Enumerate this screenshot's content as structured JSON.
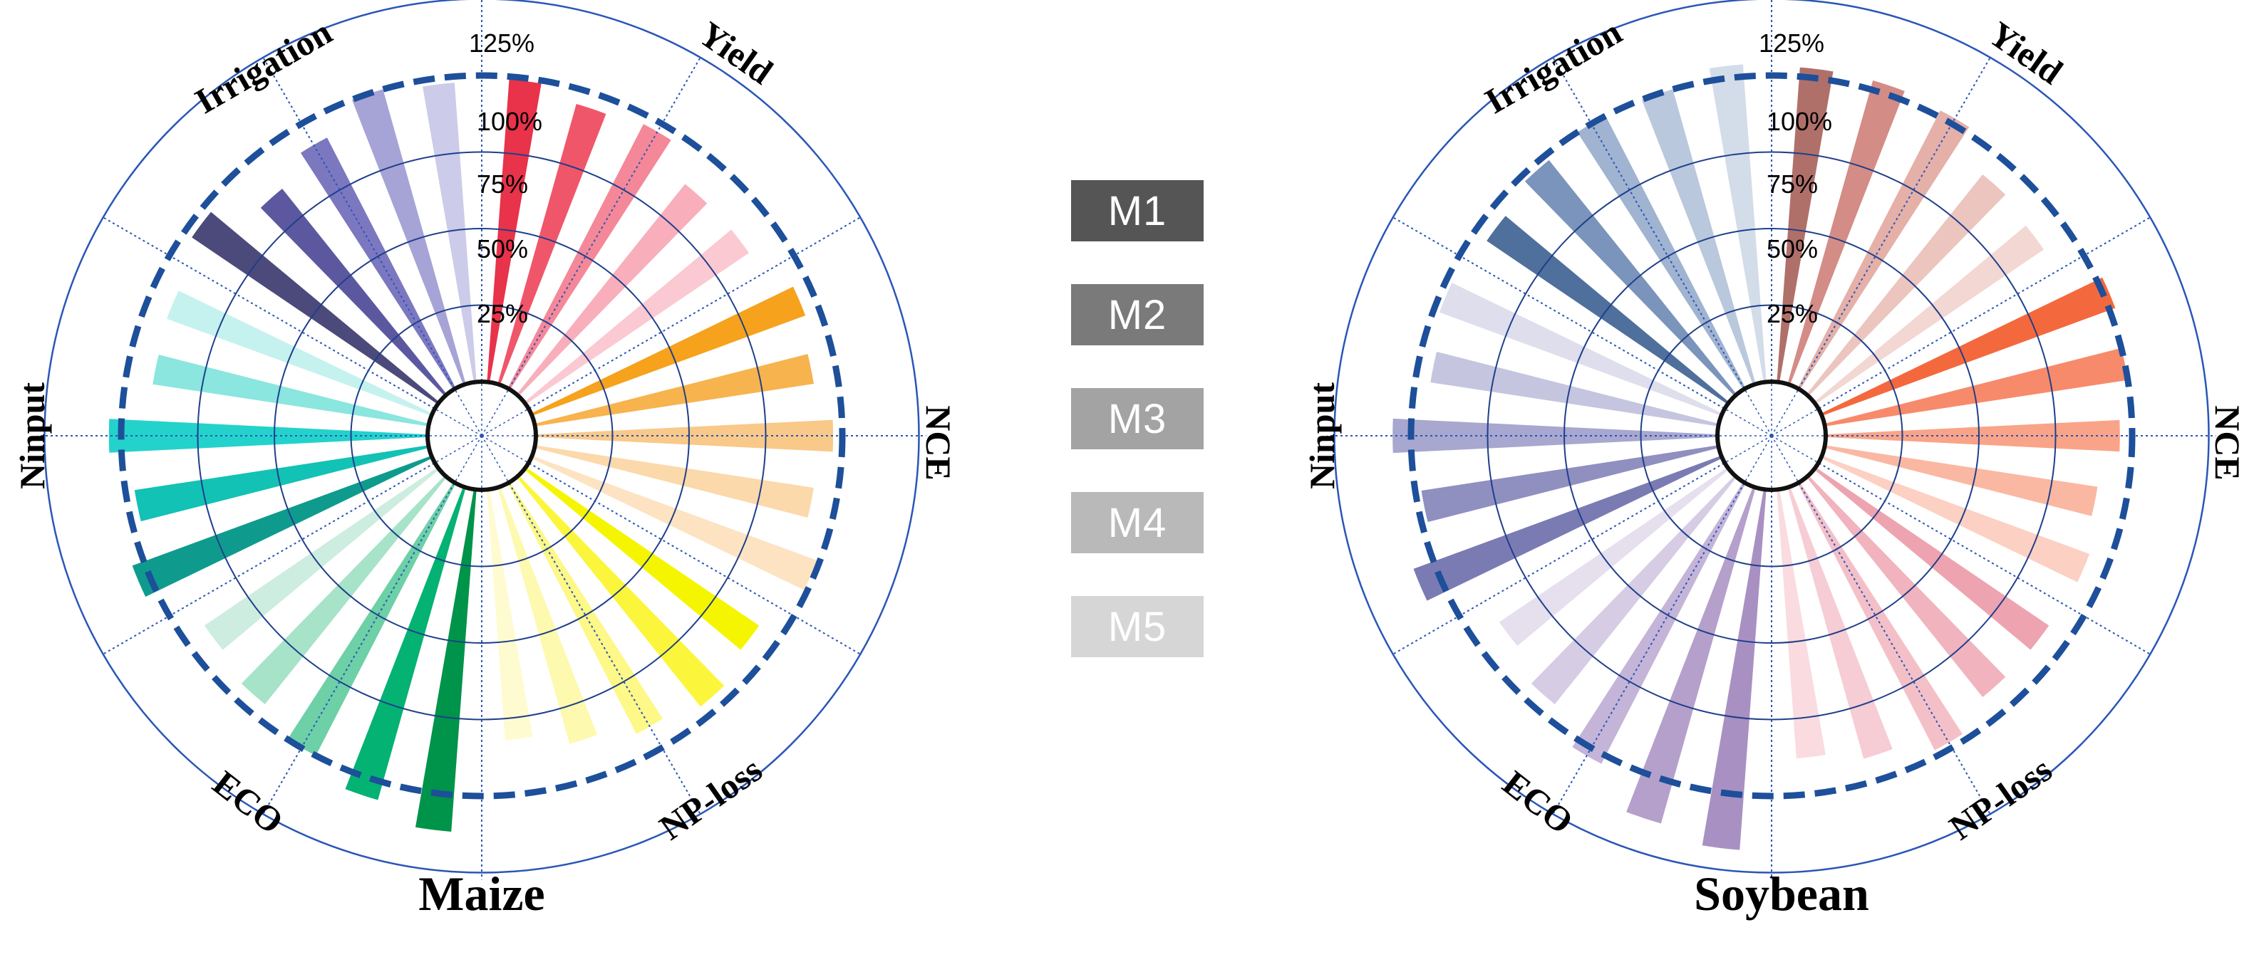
{
  "legend": [
    {
      "label": "M1",
      "color": "#555555"
    },
    {
      "label": "M2",
      "color": "#7a7a7a"
    },
    {
      "label": "M3",
      "color": "#a3a3a3"
    },
    {
      "label": "M4",
      "color": "#b9b9b9"
    },
    {
      "label": "M5",
      "color": "#d6d6d6"
    }
  ],
  "chart_data": [
    {
      "type": "radial-bar",
      "title": "Maize",
      "radial_ticks": [
        "25%",
        "50%",
        "75%",
        "100%",
        "125%"
      ],
      "radial_range": [
        0,
        125
      ],
      "reference_line": 100,
      "categories": [
        {
          "name": "Yield",
          "values": [
            99,
            95,
            97,
            88,
            88
          ],
          "colors": [
            "#e8334a",
            "#f0566a",
            "#f48898",
            "#f8aebb",
            "#fbc9d2"
          ]
        },
        {
          "name": "NCE",
          "values": [
            95,
            92,
            97,
            92,
            99
          ],
          "colors": [
            "#f6a21c",
            "#f7b34d",
            "#f9c98a",
            "#fbd9aa",
            "#fde3c2"
          ]
        },
        {
          "name": "NP-loss",
          "values": [
            92,
            96,
            92,
            87,
            82
          ],
          "colors": [
            "#f5f500",
            "#fbf63b",
            "#fdf887",
            "#fdf9ae",
            "#fefbd0"
          ]
        },
        {
          "name": "ECO",
          "values": [
            112,
            106,
            100,
            95,
            92
          ],
          "colors": [
            "#00934a",
            "#04b273",
            "#6dd0a6",
            "#a7e3c8",
            "#cceddf"
          ]
        },
        {
          "name": "Ninput",
          "values": [
            104,
            97,
            104,
            91,
            92
          ],
          "colors": [
            "#0e9b8e",
            "#12c2b4",
            "#24d2cc",
            "#8ae6df",
            "#c5f2ee"
          ]
        },
        {
          "name": "Irrigation",
          "values": [
            97,
            86,
            92,
            100,
            98
          ],
          "colors": [
            "#4b4a7a",
            "#5c58a0",
            "#7b78c0",
            "#a6a3d6",
            "#cccbe9"
          ]
        }
      ]
    },
    {
      "type": "radial-bar",
      "title": "Soybean",
      "radial_ticks": [
        "25%",
        "50%",
        "75%",
        "100%",
        "125%"
      ],
      "radial_range": [
        0,
        125
      ],
      "reference_line": 100,
      "categories": [
        {
          "name": "Yield",
          "values": [
            103,
            103,
            102,
            92,
            90
          ],
          "colors": [
            "#b0706a",
            "#d48c86",
            "#e4b0a8",
            "#ecc5bf",
            "#f2d7d2"
          ]
        },
        {
          "name": "NCE",
          "values": [
            102,
            100,
            96,
            90,
            93
          ],
          "colors": [
            "#f3693d",
            "#f78a6a",
            "#f9a488",
            "#fab8a3",
            "#fcd0c2"
          ]
        },
        {
          "name": "NP-loss",
          "values": [
            92,
            92,
            98,
            92,
            88
          ],
          "colors": [
            "#eda4b0",
            "#f1b3bd",
            "#f4c0c8",
            "#f6cdd4",
            "#f9dbe0"
          ]
        },
        {
          "name": "ECO",
          "values": [
            118,
            114,
            103,
            95,
            90
          ],
          "colors": [
            "#a891c2",
            "#b5a0cc",
            "#c4b4d8",
            "#d6cce4",
            "#e5dfee"
          ]
        },
        {
          "name": "Ninput",
          "values": [
            107,
            98,
            106,
            95,
            98
          ],
          "colors": [
            "#7b7bb3",
            "#8f8fc0",
            "#a7a7cf",
            "#c5c5e0",
            "#dedeed"
          ]
        },
        {
          "name": "Irrigation",
          "values": [
            95,
            98,
            100,
            100,
            104
          ],
          "colors": [
            "#4f6f9c",
            "#7b94bb",
            "#a0b3d0",
            "#bac8dd",
            "#d3dce9"
          ]
        }
      ]
    }
  ]
}
